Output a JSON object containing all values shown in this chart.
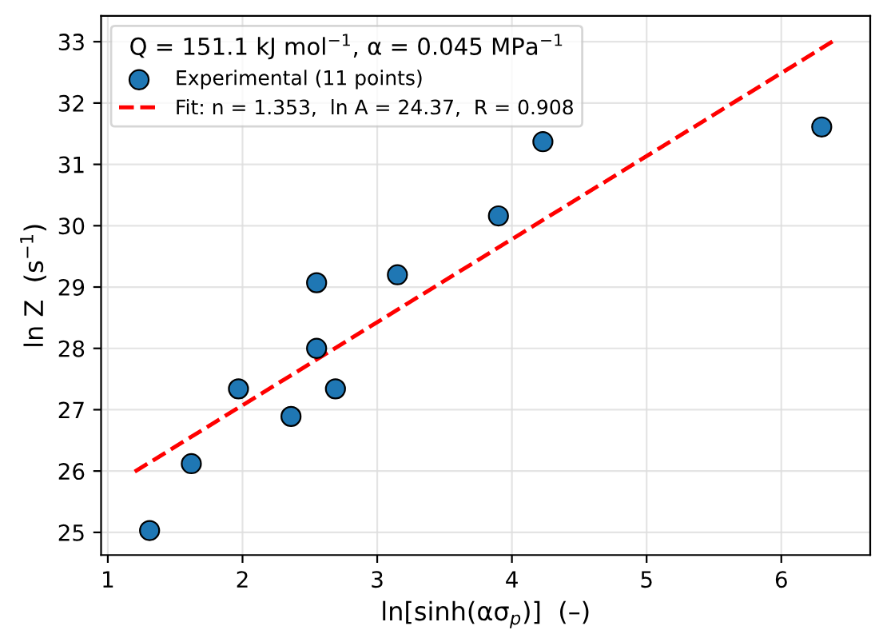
{
  "chart_data": {
    "type": "scatter",
    "xlabel": "ln[sinh(ασ$_{p}$)]  (–)",
    "ylabel": "ln Z  (s$^{−1}$)",
    "legend_title": "Q = 151.1 kJ mol$^{−1}$, α = 0.045 MPa$^{−1}$",
    "series": [
      {
        "name": "Experimental (11 points)",
        "color": "#1f77b4",
        "marker": "circle",
        "x": [
          1.31,
          1.62,
          1.97,
          2.36,
          2.55,
          2.69,
          2.55,
          3.15,
          3.9,
          4.23,
          6.3
        ],
        "values": [
          25.03,
          26.12,
          27.34,
          26.89,
          28.0,
          27.34,
          29.07,
          29.2,
          30.16,
          31.37,
          31.61
        ]
      },
      {
        "name": "Fit: n = 1.353,  ln A = 24.37,  R = 0.908",
        "type": "line",
        "color": "#ff0000",
        "line_style": "dashed",
        "marker": "none",
        "x": [
          1.2,
          6.4
        ],
        "values": [
          25.99,
          33.03
        ]
      }
    ],
    "xlim": [
      0.95,
      6.66
    ],
    "ylim": [
      24.63,
      33.42
    ],
    "xticks": [
      1,
      2,
      3,
      4,
      5,
      6
    ],
    "yticks": [
      25,
      26,
      27,
      28,
      29,
      30,
      31,
      32,
      33
    ],
    "grid": true,
    "legend": "top left"
  }
}
